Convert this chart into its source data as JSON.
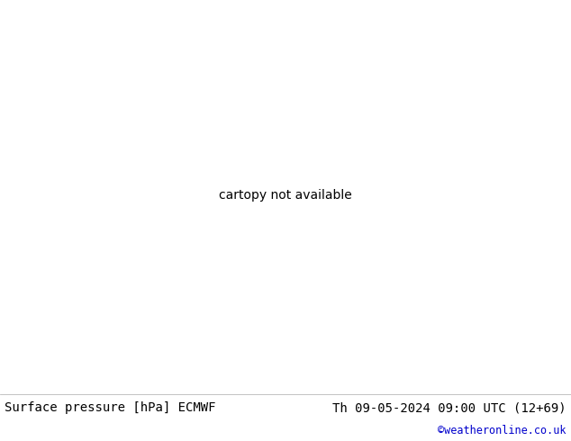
{
  "title_left": "Surface pressure [hPa] ECMWF",
  "title_right": "Th 09-05-2024 09:00 UTC (12+69)",
  "copyright": "©weatheronline.co.uk",
  "background_color": "#ffffff",
  "ocean_color": "#b0c8e8",
  "land_color": "#aad49a",
  "land_border": "#000000",
  "gray_land_color": "#c8c8c8",
  "contour_color_low": "#0000cc",
  "contour_color_mid": "#000000",
  "contour_color_high": "#cc0000",
  "contour_lw_low": 0.7,
  "contour_lw_mid": 1.8,
  "contour_lw_high": 0.7,
  "label_fontsize": 6.5,
  "title_fontsize": 10,
  "copyright_color": "#0000cc",
  "map_extent": [
    -180,
    180,
    -90,
    90
  ]
}
